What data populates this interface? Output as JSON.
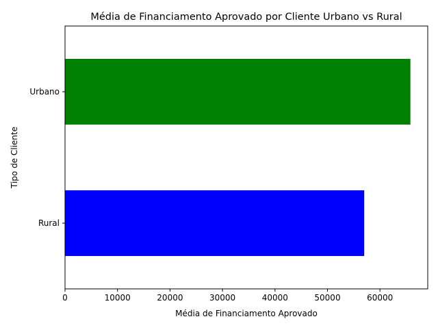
{
  "chart_data": {
    "type": "bar",
    "orientation": "horizontal",
    "title": "Média de Financiamento Aprovado por Cliente Urbano vs Rural",
    "xlabel": "Média de Financiamento Aprovado",
    "ylabel": "Tipo de Cliente",
    "categories": [
      "Rural",
      "Urbano"
    ],
    "values": [
      57000,
      65800
    ],
    "colors": [
      "#0000ff",
      "#008000"
    ],
    "xlim": [
      0,
      69100
    ],
    "xticks": [
      0,
      10000,
      20000,
      30000,
      40000,
      50000,
      60000
    ],
    "xtick_labels": [
      "0",
      "10000",
      "20000",
      "30000",
      "40000",
      "50000",
      "60000"
    ],
    "grid": false,
    "legend": false
  }
}
